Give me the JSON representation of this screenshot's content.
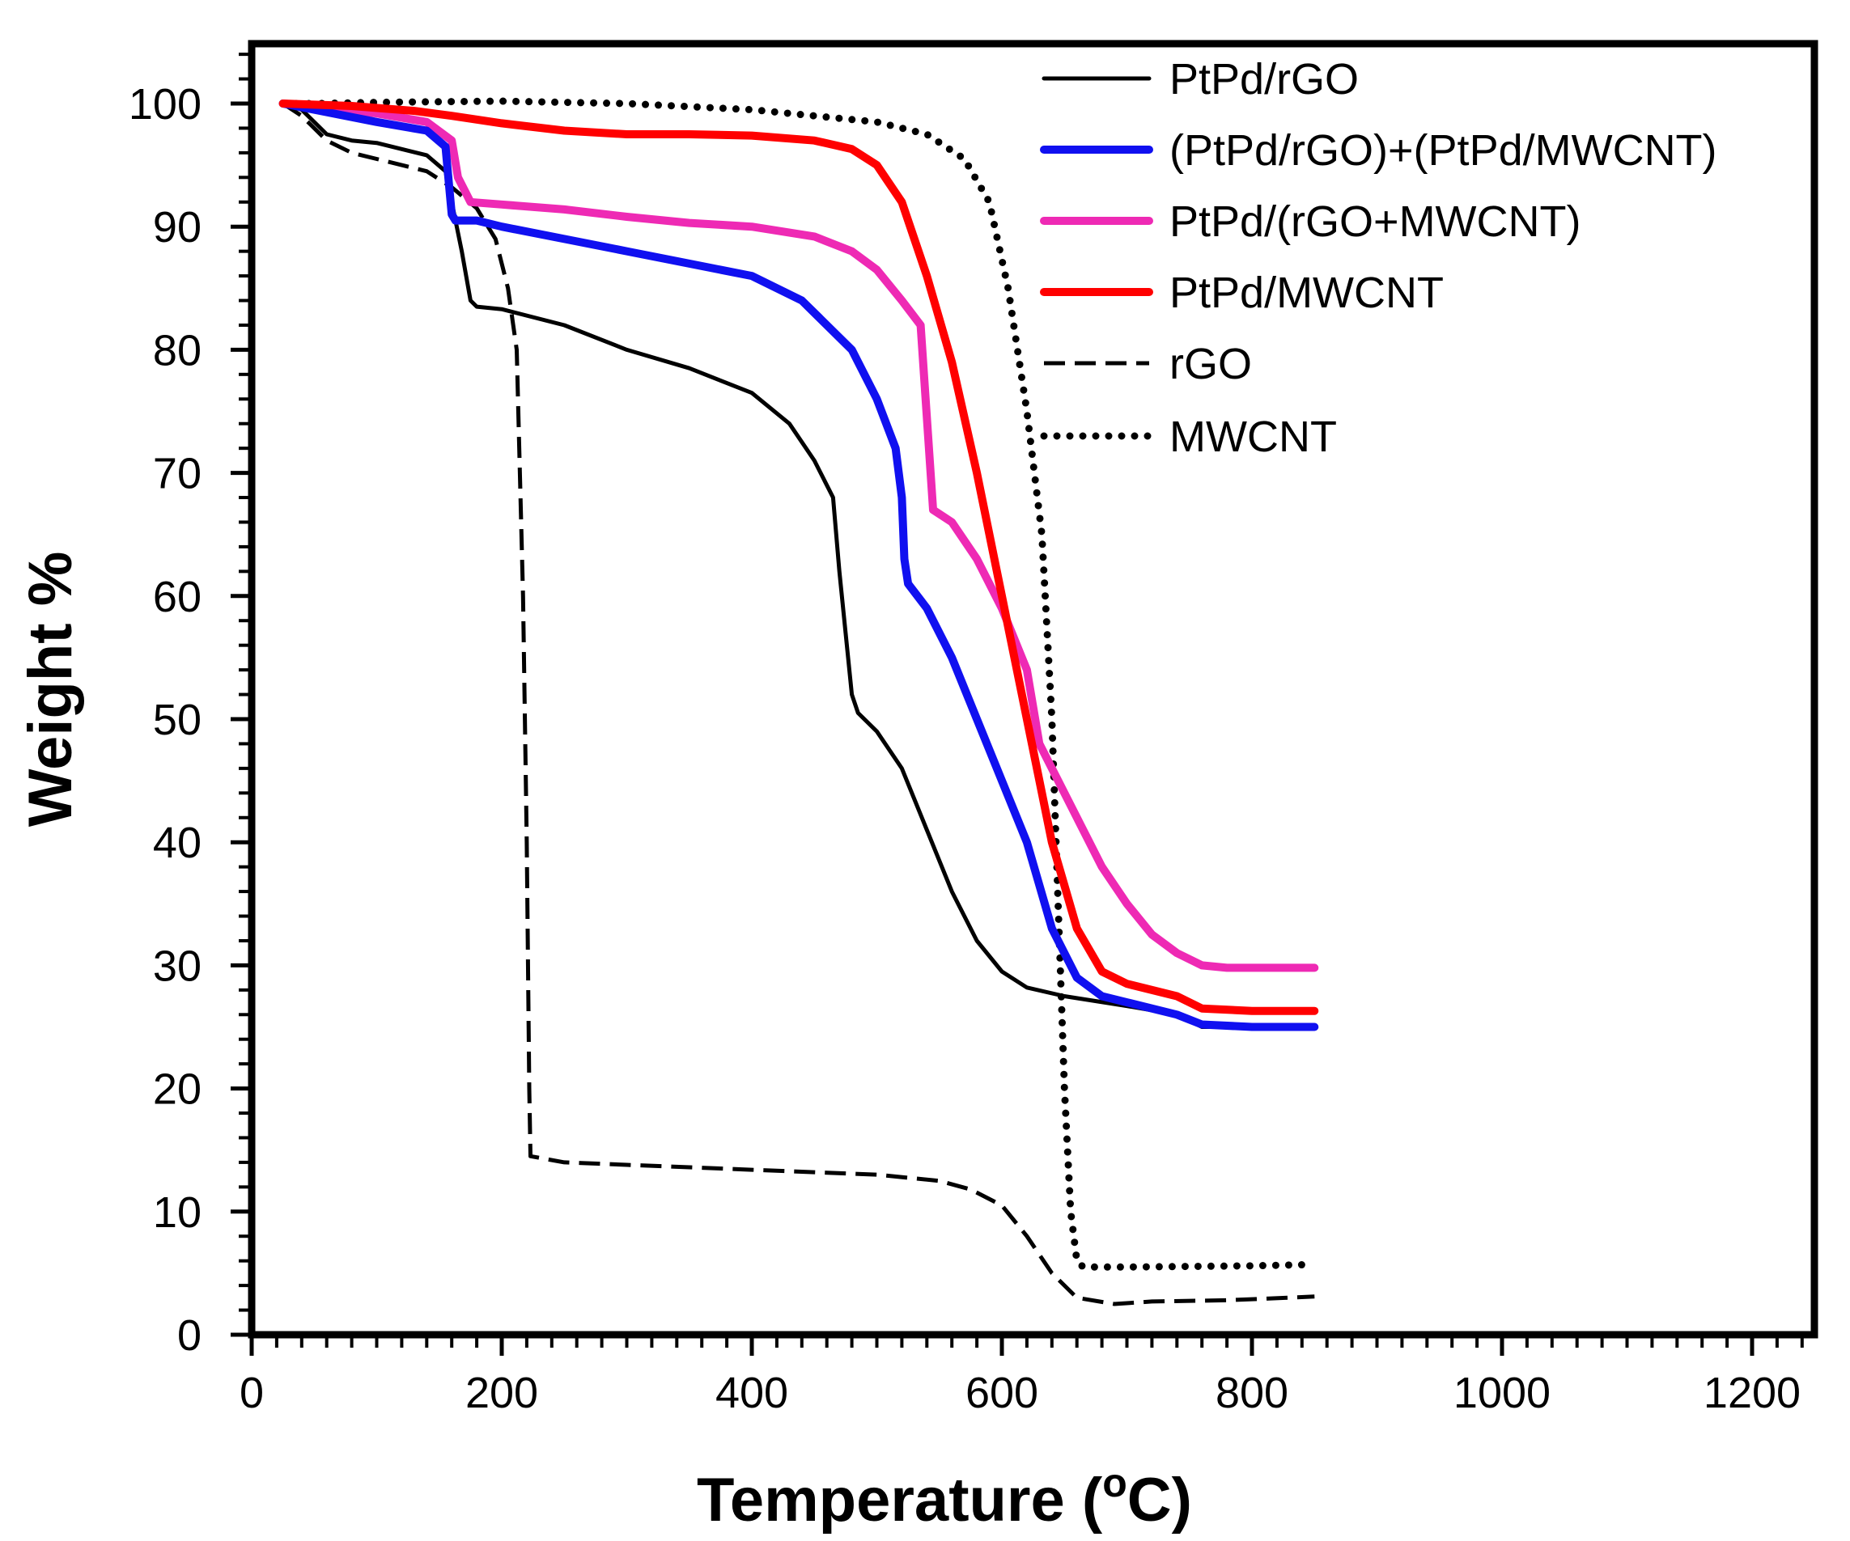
{
  "chart_data": {
    "type": "line",
    "title": "",
    "xlabel": "Temperature (°C)",
    "xlabel_main": "Temperature (",
    "xlabel_degree": "o",
    "xlabel_unit": "C)",
    "ylabel": "Weight %",
    "xlim": [
      0,
      1250
    ],
    "ylim": [
      0,
      105
    ],
    "xticks": [
      0,
      200,
      400,
      600,
      800,
      1000,
      1200
    ],
    "yticks": [
      0,
      10,
      20,
      30,
      40,
      50,
      60,
      70,
      80,
      90,
      100
    ],
    "x_minor_step": 20,
    "y_minor_step": 2,
    "grid": false,
    "legend_position": "top-right",
    "series": [
      {
        "name": "PtPd/rGO",
        "color": "#000000",
        "style": "solid",
        "points": [
          [
            25,
            100
          ],
          [
            40,
            99.5
          ],
          [
            60,
            97.5
          ],
          [
            80,
            97
          ],
          [
            100,
            96.8
          ],
          [
            120,
            96.3
          ],
          [
            140,
            95.8
          ],
          [
            155,
            94.5
          ],
          [
            162,
            91
          ],
          [
            168,
            88
          ],
          [
            175,
            84
          ],
          [
            180,
            83.5
          ],
          [
            200,
            83.3
          ],
          [
            250,
            82
          ],
          [
            300,
            80
          ],
          [
            350,
            78.5
          ],
          [
            400,
            76.5
          ],
          [
            430,
            74
          ],
          [
            450,
            71
          ],
          [
            465,
            68
          ],
          [
            470,
            62
          ],
          [
            475,
            57
          ],
          [
            480,
            52
          ],
          [
            485,
            50.5
          ],
          [
            500,
            49
          ],
          [
            520,
            46
          ],
          [
            540,
            41
          ],
          [
            560,
            36
          ],
          [
            580,
            32
          ],
          [
            600,
            29.5
          ],
          [
            620,
            28.2
          ],
          [
            650,
            27.5
          ],
          [
            700,
            26.7
          ],
          [
            740,
            26
          ],
          [
            760,
            25
          ],
          [
            800,
            25
          ],
          [
            850,
            25
          ]
        ]
      },
      {
        "name": "(PtPd/rGO)+(PtPd/MWCNT)",
        "color": "#1010f0",
        "style": "solid",
        "points": [
          [
            25,
            100
          ],
          [
            50,
            99.5
          ],
          [
            100,
            98.5
          ],
          [
            140,
            97.8
          ],
          [
            155,
            96.5
          ],
          [
            160,
            91
          ],
          [
            163,
            90.5
          ],
          [
            180,
            90.5
          ],
          [
            200,
            90
          ],
          [
            250,
            89
          ],
          [
            300,
            88
          ],
          [
            350,
            87
          ],
          [
            400,
            86
          ],
          [
            440,
            84
          ],
          [
            480,
            80
          ],
          [
            500,
            76
          ],
          [
            515,
            72
          ],
          [
            520,
            68
          ],
          [
            522,
            63
          ],
          [
            525,
            61
          ],
          [
            540,
            59
          ],
          [
            560,
            55
          ],
          [
            580,
            50
          ],
          [
            600,
            45
          ],
          [
            620,
            40
          ],
          [
            640,
            33
          ],
          [
            660,
            29
          ],
          [
            680,
            27.5
          ],
          [
            700,
            27
          ],
          [
            740,
            26
          ],
          [
            760,
            25.2
          ],
          [
            800,
            25
          ],
          [
            850,
            25
          ]
        ]
      },
      {
        "name": "PtPd/(rGO+MWCNT)",
        "color": "#ee2ab4",
        "style": "solid",
        "points": [
          [
            25,
            100
          ],
          [
            50,
            99.8
          ],
          [
            100,
            99.2
          ],
          [
            140,
            98.5
          ],
          [
            160,
            97
          ],
          [
            165,
            94
          ],
          [
            175,
            92
          ],
          [
            200,
            91.8
          ],
          [
            250,
            91.4
          ],
          [
            300,
            90.8
          ],
          [
            350,
            90.3
          ],
          [
            400,
            90
          ],
          [
            450,
            89.2
          ],
          [
            480,
            88
          ],
          [
            500,
            86.5
          ],
          [
            520,
            84
          ],
          [
            535,
            82
          ],
          [
            545,
            67
          ],
          [
            560,
            66
          ],
          [
            580,
            63
          ],
          [
            600,
            59
          ],
          [
            620,
            54
          ],
          [
            630,
            48
          ],
          [
            640,
            46
          ],
          [
            660,
            42
          ],
          [
            680,
            38
          ],
          [
            700,
            35
          ],
          [
            720,
            32.5
          ],
          [
            740,
            31
          ],
          [
            760,
            30
          ],
          [
            780,
            29.8
          ],
          [
            850,
            29.8
          ]
        ]
      },
      {
        "name": "PtPd/MWCNT",
        "color": "#ff0000",
        "style": "solid",
        "points": [
          [
            25,
            100
          ],
          [
            80,
            99.8
          ],
          [
            130,
            99.4
          ],
          [
            160,
            99
          ],
          [
            200,
            98.4
          ],
          [
            250,
            97.8
          ],
          [
            300,
            97.5
          ],
          [
            350,
            97.5
          ],
          [
            400,
            97.4
          ],
          [
            450,
            97
          ],
          [
            480,
            96.3
          ],
          [
            500,
            95
          ],
          [
            520,
            92
          ],
          [
            540,
            86
          ],
          [
            560,
            79
          ],
          [
            580,
            70
          ],
          [
            600,
            60
          ],
          [
            620,
            50
          ],
          [
            640,
            40
          ],
          [
            660,
            33
          ],
          [
            680,
            29.5
          ],
          [
            700,
            28.5
          ],
          [
            740,
            27.5
          ],
          [
            760,
            26.5
          ],
          [
            800,
            26.3
          ],
          [
            850,
            26.3
          ]
        ]
      },
      {
        "name": "rGO",
        "color": "#000000",
        "style": "dashed",
        "points": [
          [
            25,
            100
          ],
          [
            40,
            99
          ],
          [
            60,
            97
          ],
          [
            80,
            96
          ],
          [
            100,
            95.5
          ],
          [
            120,
            95
          ],
          [
            140,
            94.5
          ],
          [
            160,
            93.2
          ],
          [
            180,
            91.5
          ],
          [
            195,
            89
          ],
          [
            205,
            85
          ],
          [
            212,
            80
          ],
          [
            217,
            60
          ],
          [
            220,
            40
          ],
          [
            222,
            20
          ],
          [
            223,
            14.5
          ],
          [
            250,
            14
          ],
          [
            300,
            13.8
          ],
          [
            350,
            13.6
          ],
          [
            400,
            13.4
          ],
          [
            450,
            13.2
          ],
          [
            500,
            13
          ],
          [
            550,
            12.5
          ],
          [
            575,
            11.8
          ],
          [
            600,
            10.5
          ],
          [
            620,
            8
          ],
          [
            640,
            5
          ],
          [
            660,
            3
          ],
          [
            690,
            2.5
          ],
          [
            720,
            2.7
          ],
          [
            780,
            2.8
          ],
          [
            850,
            3.1
          ]
        ]
      },
      {
        "name": "MWCNT",
        "color": "#000000",
        "style": "dotted",
        "points": [
          [
            25,
            100
          ],
          [
            50,
            100
          ],
          [
            100,
            100.1
          ],
          [
            200,
            100.2
          ],
          [
            300,
            100
          ],
          [
            400,
            99.5
          ],
          [
            450,
            99
          ],
          [
            500,
            98.5
          ],
          [
            540,
            97.5
          ],
          [
            570,
            95.5
          ],
          [
            590,
            92
          ],
          [
            605,
            85
          ],
          [
            620,
            75
          ],
          [
            632,
            65
          ],
          [
            640,
            50
          ],
          [
            645,
            35
          ],
          [
            650,
            20
          ],
          [
            655,
            10
          ],
          [
            660,
            6
          ],
          [
            665,
            5.5
          ],
          [
            700,
            5.5
          ],
          [
            800,
            5.6
          ],
          [
            850,
            5.7
          ]
        ]
      }
    ]
  }
}
